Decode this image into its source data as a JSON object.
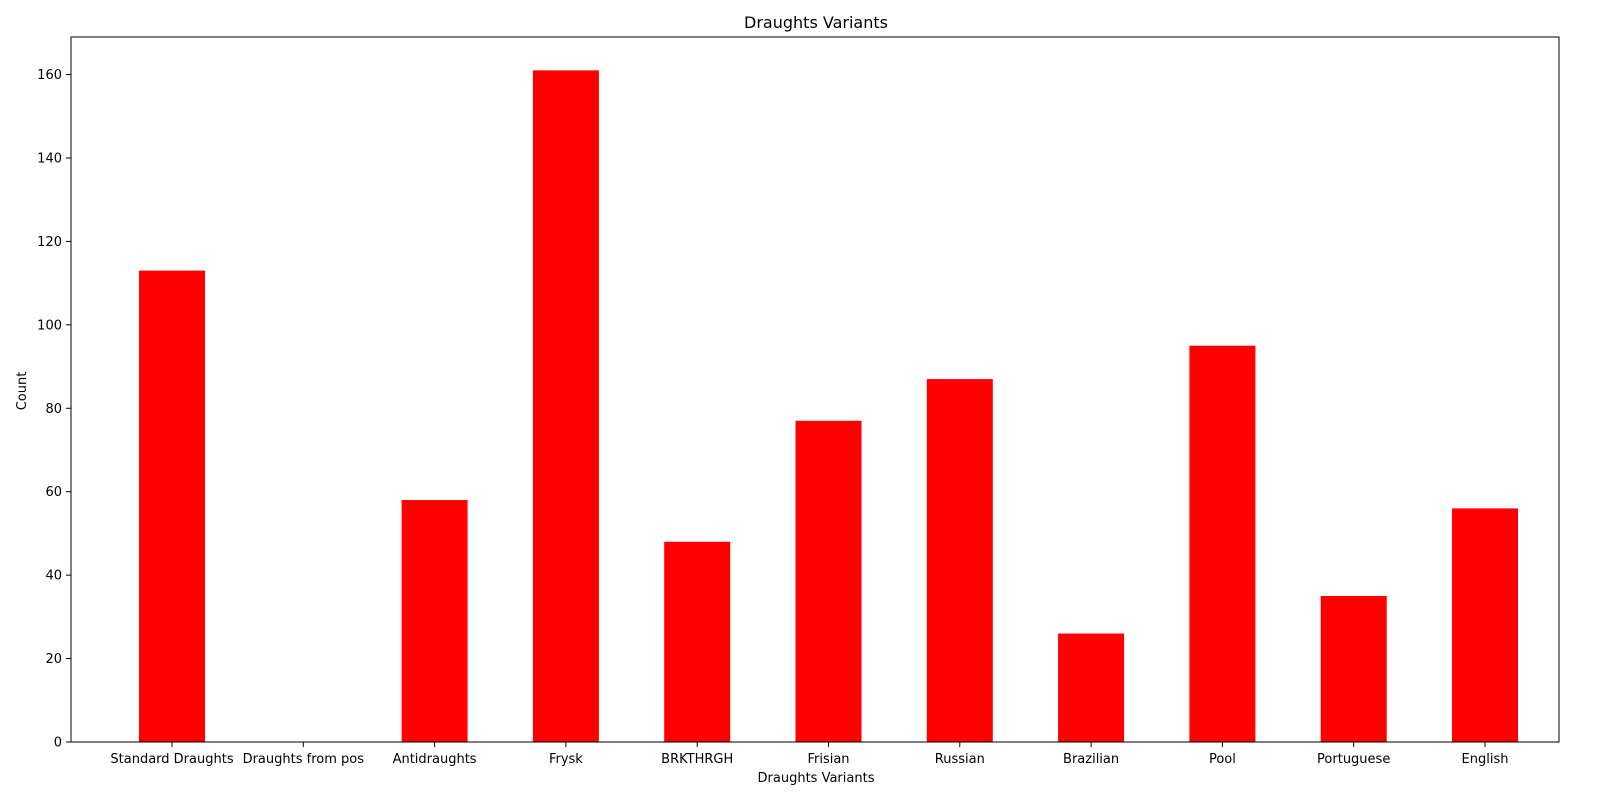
{
  "chart_data": {
    "type": "bar",
    "title": "Draughts Variants",
    "xlabel": "Draughts Variants",
    "ylabel": "Count",
    "categories": [
      "Standard Draughts",
      "Draughts from pos",
      "Antidraughts",
      "Frysk",
      "BRKTHRGH",
      "Frisian",
      "Russian",
      "Brazilian",
      "Pool",
      "Portuguese",
      "English"
    ],
    "values": [
      113,
      0,
      58,
      161,
      48,
      77,
      87,
      26,
      95,
      35,
      56
    ],
    "ylim": [
      0,
      169
    ],
    "yticks": [
      0,
      20,
      40,
      60,
      80,
      100,
      120,
      140,
      160
    ],
    "bar_color": "#ff0000",
    "grid": false,
    "legend": "none"
  }
}
